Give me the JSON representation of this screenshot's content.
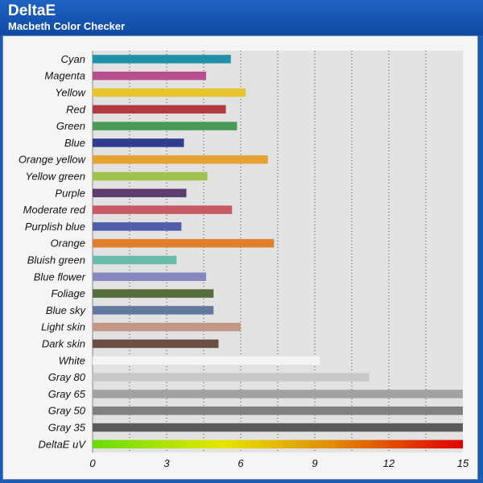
{
  "header": {
    "title": "DeltaE",
    "subtitle": "Macbeth Color Checker"
  },
  "chart_data": {
    "type": "bar",
    "orientation": "horizontal",
    "title": "DeltaE",
    "subtitle": "Macbeth Color Checker",
    "xlim": [
      0,
      15
    ],
    "xticks": [
      0,
      3,
      6,
      9,
      12,
      15
    ],
    "grid": "vertical dotted",
    "categories": [
      "Cyan",
      "Magenta",
      "Yellow",
      "Red",
      "Green",
      "Blue",
      "Orange yellow",
      "Yellow green",
      "Purple",
      "Moderate red",
      "Purplish blue",
      "Orange",
      "Bluish green",
      "Blue flower",
      "Foliage",
      "Blue sky",
      "Light skin",
      "Dark skin",
      "White",
      "Gray 80",
      "Gray 65",
      "Gray 50",
      "Gray 35",
      "DeltaE uV"
    ],
    "values": [
      5.6,
      4.6,
      6.2,
      5.4,
      5.85,
      3.7,
      7.1,
      4.65,
      3.8,
      5.65,
      3.6,
      7.35,
      3.4,
      4.6,
      4.9,
      4.9,
      6.0,
      5.1,
      9.2,
      11.2,
      15,
      15,
      15,
      15
    ],
    "colors": [
      "#1f92a8",
      "#b8508f",
      "#e6c430",
      "#b23a42",
      "#4a9a58",
      "#2f3d8e",
      "#e6a232",
      "#9ec24a",
      "#5c3e6e",
      "#c85a68",
      "#4e5ea8",
      "#e07f2e",
      "#66bca8",
      "#8888c0",
      "#566e3c",
      "#6278a0",
      "#c49886",
      "#6c4e44",
      "#f4f4f4",
      "#c8c8c8",
      "#a2a2a2",
      "#808080",
      "#5a5a5a",
      "gradient"
    ],
    "scale_gradient": [
      "#66dd00",
      "#e6e600",
      "#e08a00",
      "#e00000"
    ]
  }
}
